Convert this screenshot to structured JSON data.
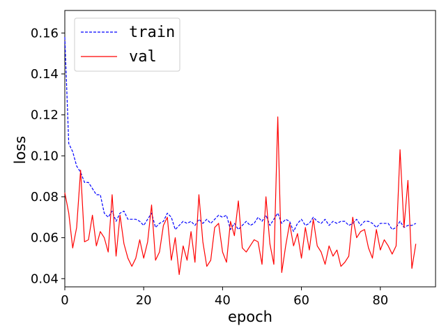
{
  "chart_data": {
    "type": "line",
    "xlabel": "epoch",
    "ylabel": "loss",
    "xlim": [
      0,
      94
    ],
    "ylim": [
      0.036,
      0.171
    ],
    "xticks": [
      0,
      20,
      40,
      60,
      80
    ],
    "xtick_labels": [
      "0",
      "20",
      "40",
      "60",
      "80"
    ],
    "yticks": [
      0.04,
      0.06,
      0.08,
      0.1,
      0.12,
      0.14,
      0.16
    ],
    "ytick_labels": [
      "0.04",
      "0.06",
      "0.08",
      "0.10",
      "0.12",
      "0.14",
      "0.16"
    ],
    "grid": false,
    "legend_position": "top-left",
    "x": [
      0,
      1,
      2,
      3,
      4,
      5,
      6,
      7,
      8,
      9,
      10,
      11,
      12,
      13,
      14,
      15,
      16,
      17,
      18,
      19,
      20,
      21,
      22,
      23,
      24,
      25,
      26,
      27,
      28,
      29,
      30,
      31,
      32,
      33,
      34,
      35,
      36,
      37,
      38,
      39,
      40,
      41,
      42,
      43,
      44,
      45,
      46,
      47,
      48,
      49,
      50,
      51,
      52,
      53,
      54,
      55,
      56,
      57,
      58,
      59,
      60,
      61,
      62,
      63,
      64,
      65,
      66,
      67,
      68,
      69,
      70,
      71,
      72,
      73,
      74,
      75,
      76,
      77,
      78,
      79,
      80,
      81,
      82,
      83,
      84,
      85,
      86,
      87,
      88,
      89
    ],
    "series": [
      {
        "name": "train",
        "color": "#0000ff",
        "dash": "dashed",
        "values": [
          0.158,
          0.106,
          0.102,
          0.095,
          0.092,
          0.087,
          0.087,
          0.084,
          0.081,
          0.081,
          0.072,
          0.07,
          0.073,
          0.068,
          0.072,
          0.073,
          0.069,
          0.069,
          0.069,
          0.068,
          0.066,
          0.069,
          0.072,
          0.065,
          0.067,
          0.068,
          0.072,
          0.07,
          0.064,
          0.066,
          0.068,
          0.067,
          0.068,
          0.066,
          0.069,
          0.067,
          0.069,
          0.067,
          0.069,
          0.071,
          0.07,
          0.071,
          0.064,
          0.067,
          0.064,
          0.066,
          0.068,
          0.066,
          0.067,
          0.07,
          0.068,
          0.071,
          0.066,
          0.069,
          0.072,
          0.067,
          0.069,
          0.068,
          0.063,
          0.067,
          0.069,
          0.066,
          0.067,
          0.07,
          0.068,
          0.067,
          0.069,
          0.066,
          0.068,
          0.067,
          0.068,
          0.068,
          0.066,
          0.067,
          0.069,
          0.066,
          0.068,
          0.068,
          0.067,
          0.065,
          0.067,
          0.067,
          0.067,
          0.064,
          0.065,
          0.068,
          0.065,
          0.066,
          0.066,
          0.067
        ]
      },
      {
        "name": "val",
        "color": "#ff0000",
        "dash": "solid",
        "values": [
          0.082,
          0.072,
          0.055,
          0.065,
          0.093,
          0.058,
          0.059,
          0.071,
          0.056,
          0.063,
          0.06,
          0.053,
          0.081,
          0.051,
          0.071,
          0.057,
          0.05,
          0.046,
          0.05,
          0.059,
          0.05,
          0.058,
          0.076,
          0.049,
          0.053,
          0.066,
          0.07,
          0.049,
          0.06,
          0.042,
          0.056,
          0.049,
          0.063,
          0.048,
          0.081,
          0.058,
          0.046,
          0.049,
          0.065,
          0.067,
          0.053,
          0.048,
          0.068,
          0.061,
          0.078,
          0.055,
          0.053,
          0.056,
          0.059,
          0.058,
          0.047,
          0.08,
          0.057,
          0.047,
          0.119,
          0.043,
          0.056,
          0.067,
          0.056,
          0.062,
          0.05,
          0.065,
          0.054,
          0.069,
          0.056,
          0.053,
          0.047,
          0.056,
          0.051,
          0.054,
          0.046,
          0.048,
          0.051,
          0.07,
          0.06,
          0.063,
          0.064,
          0.055,
          0.05,
          0.064,
          0.054,
          0.059,
          0.056,
          0.052,
          0.056,
          0.103,
          0.065,
          0.088,
          0.045,
          0.057
        ]
      }
    ]
  }
}
